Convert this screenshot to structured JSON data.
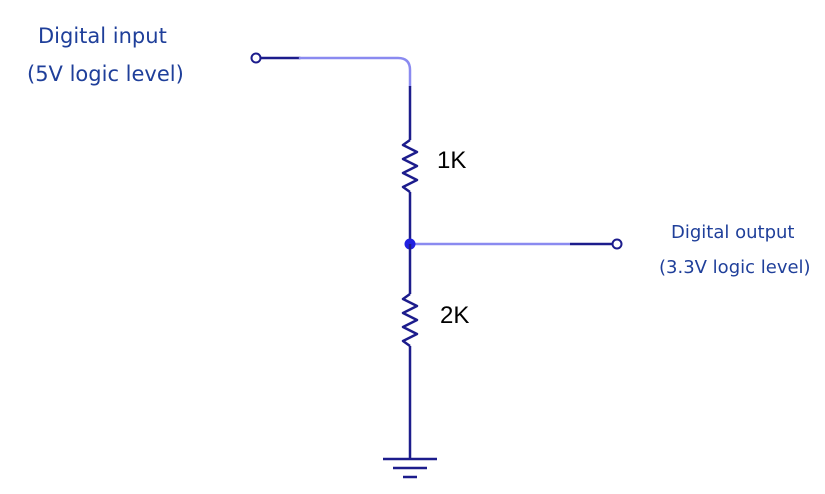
{
  "input": {
    "label_line1": "Digital input",
    "label_line2": "(5V logic level)"
  },
  "output": {
    "label_line1": "Digital output",
    "label_line2": "(3.3V logic level)"
  },
  "resistors": {
    "r1_value": "1K",
    "r2_value": "2K"
  },
  "colors": {
    "wire_dark": "#1c1c8c",
    "wire_highlight": "#8a8af0",
    "node": "#2020e0",
    "text": "#1f3f9a"
  }
}
